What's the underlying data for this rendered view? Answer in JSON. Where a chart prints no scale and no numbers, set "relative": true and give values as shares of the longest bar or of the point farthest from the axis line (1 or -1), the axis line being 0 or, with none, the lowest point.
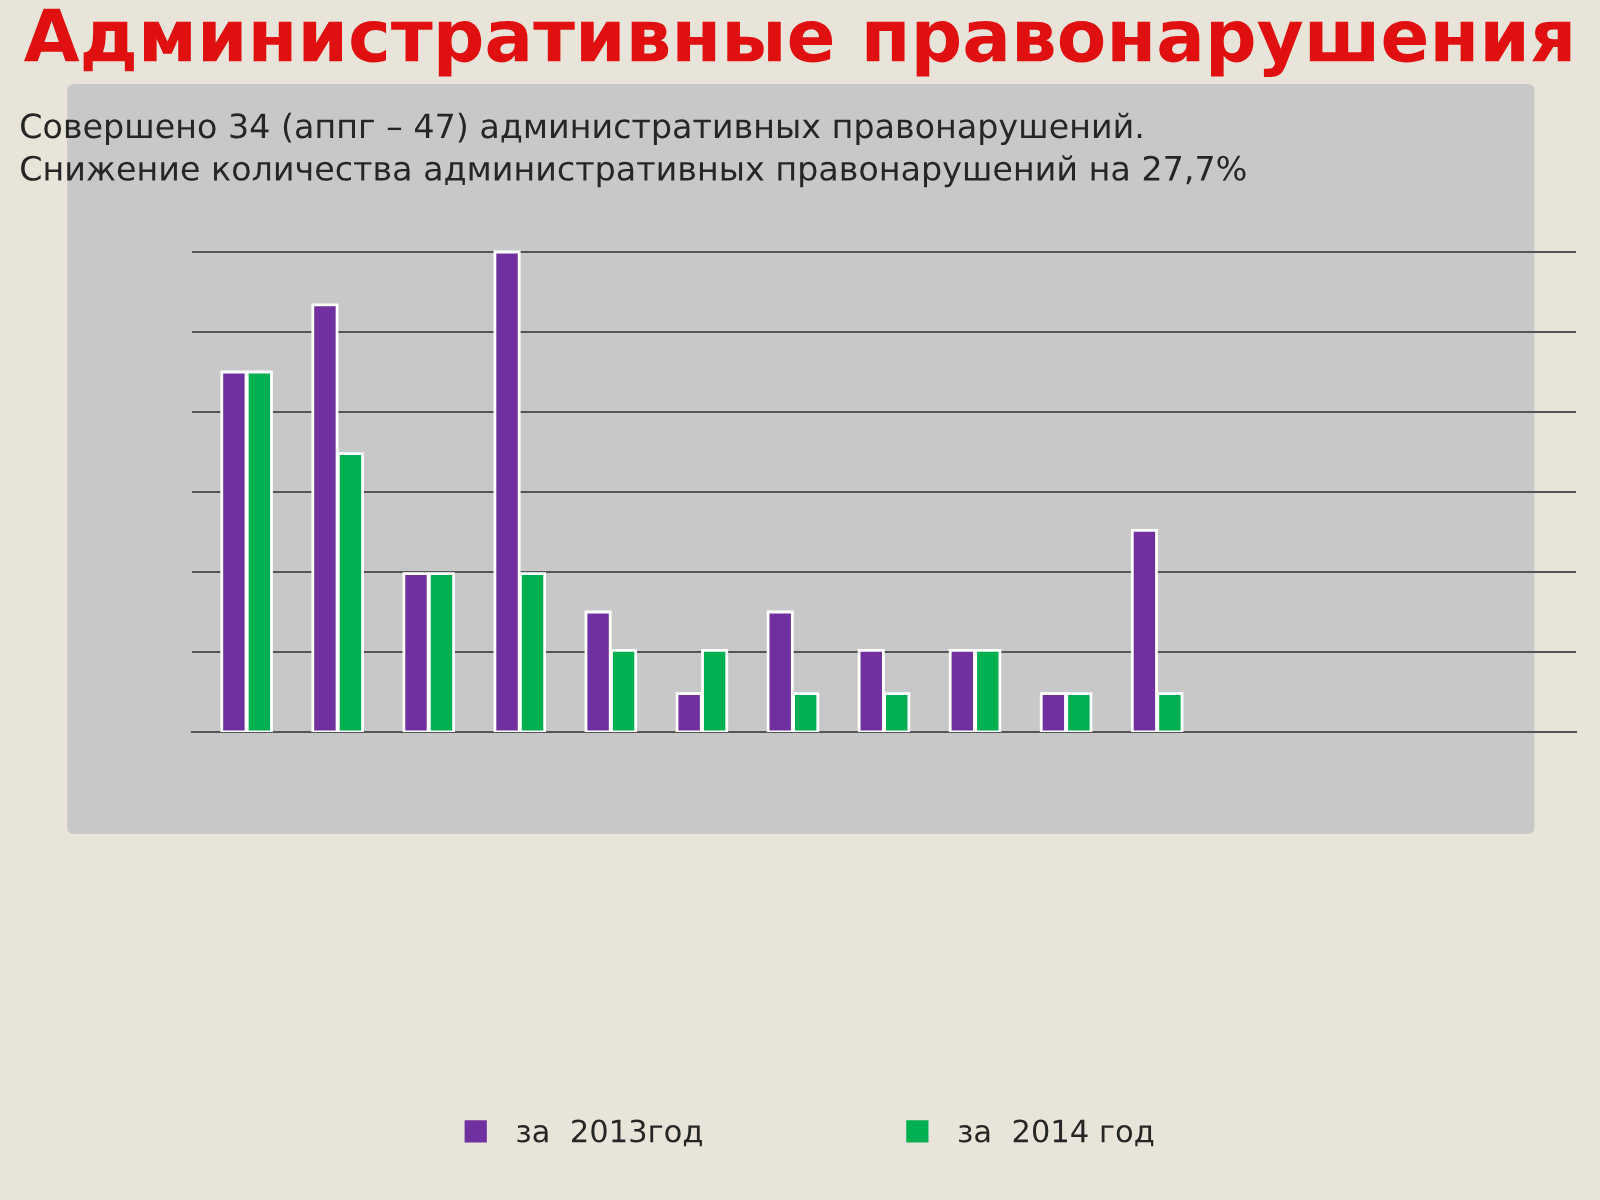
{
  "chart_data": {
    "type": "bar",
    "title": "Административные правонарушения",
    "subtitle": "Совершено 34 (аппг – 47) административных правонарушений.\nСнижение количества административных правонарушений на 27,7%",
    "relative": true,
    "categories": [
      null,
      null,
      null,
      null,
      null,
      null,
      null,
      null,
      null,
      null,
      null
    ],
    "series": [
      {
        "name": "за  2013год",
        "color": "#7030a0",
        "values": [
          0.75,
          0.89,
          0.33,
          1.0,
          0.25,
          0.08,
          0.25,
          0.17,
          0.17,
          0.08,
          0.42
        ]
      },
      {
        "name": "за  2014 год",
        "color": "#00b050",
        "values": [
          0.75,
          0.58,
          0.33,
          0.33,
          0.17,
          0.17,
          0.08,
          0.08,
          0.17,
          0.08,
          0.08
        ]
      }
    ],
    "grid": "y",
    "legend": "bottom"
  }
}
